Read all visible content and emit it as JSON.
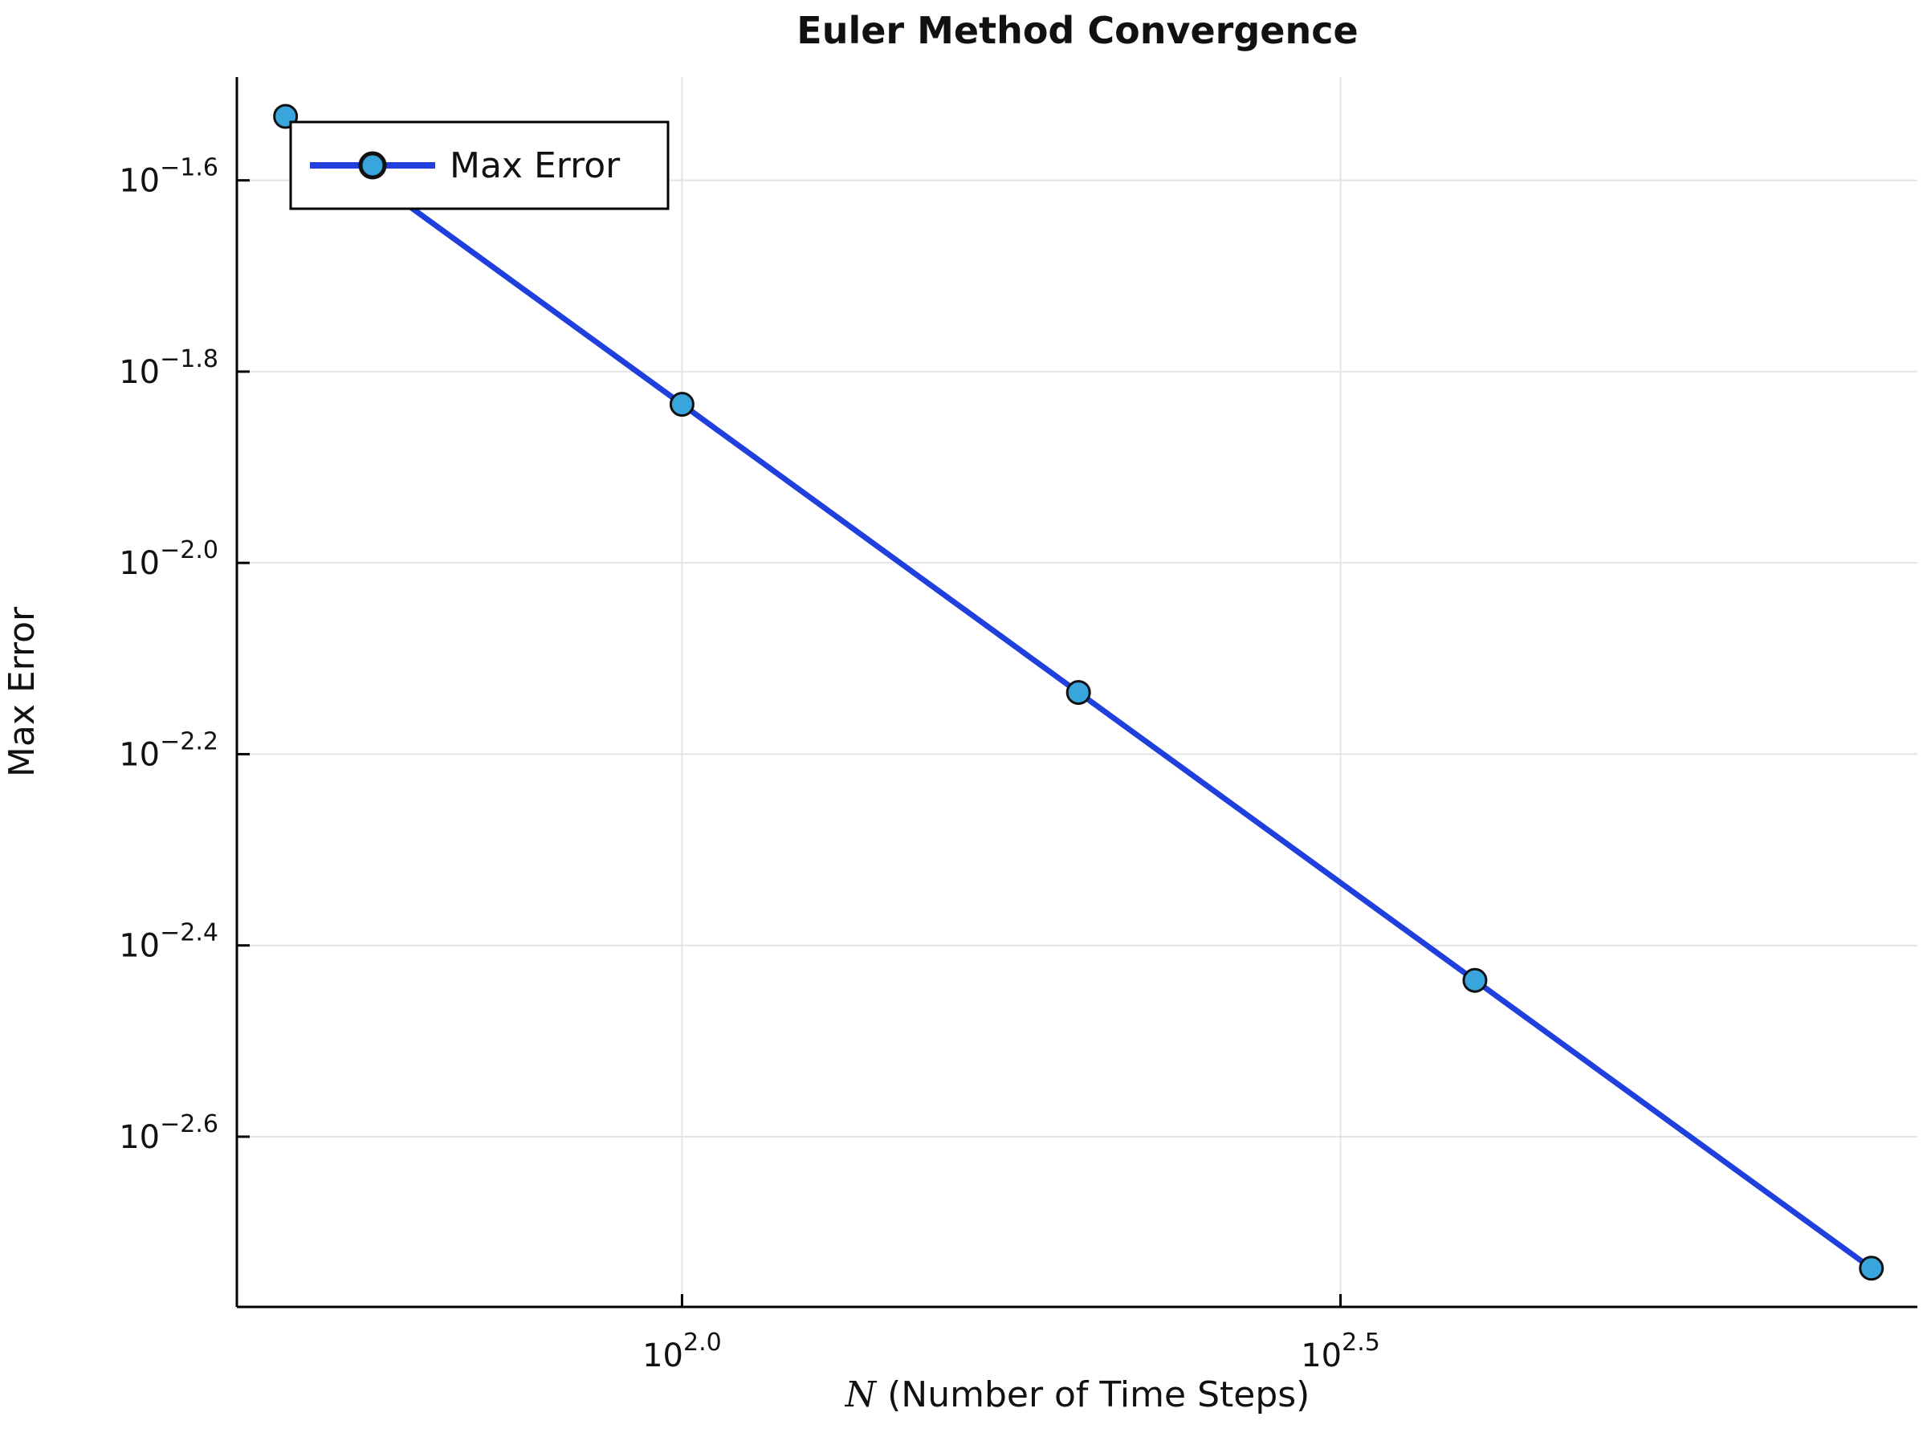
{
  "title": "Euler Method Convergence",
  "chart_data": {
    "type": "line",
    "title": "Euler Method Convergence",
    "xlabel_math": "N",
    "xlabel_rest": " (Number of Time Steps)",
    "ylabel": "Max Error",
    "legend_label": "Max Error",
    "legend_position": "top-left",
    "x_scale": "log10",
    "y_scale": "log10",
    "grid": true,
    "x": [
      50,
      100,
      200,
      400,
      800
    ],
    "y": [
      0.0293,
      0.01465,
      0.00732,
      0.00366,
      0.00183
    ],
    "xlim_log": [
      1.662,
      2.938
    ],
    "ylim_log": [
      -2.778,
      -1.492
    ],
    "x_ticks": [
      {
        "log": 2.0,
        "base": "10",
        "exp_label": "2.0"
      },
      {
        "log": 2.5,
        "base": "10",
        "exp_label": "2.5"
      }
    ],
    "y_ticks": [
      {
        "log": -1.6,
        "base": "10",
        "exp_label": "−1.6"
      },
      {
        "log": -1.8,
        "base": "10",
        "exp_label": "−1.8"
      },
      {
        "log": -2.0,
        "base": "10",
        "exp_label": "−2.0"
      },
      {
        "log": -2.2,
        "base": "10",
        "exp_label": "−2.2"
      },
      {
        "log": -2.4,
        "base": "10",
        "exp_label": "−2.4"
      },
      {
        "log": -2.6,
        "base": "10",
        "exp_label": "−2.6"
      }
    ],
    "colors": {
      "line": "#2040DE",
      "marker_fill": "#38A5DC",
      "marker_stroke": "#111111",
      "grid": "#E4E4E4",
      "axis": "#000000",
      "legend_border": "#000000",
      "legend_bg": "#FFFFFF",
      "background": "#FFFFFF"
    }
  }
}
